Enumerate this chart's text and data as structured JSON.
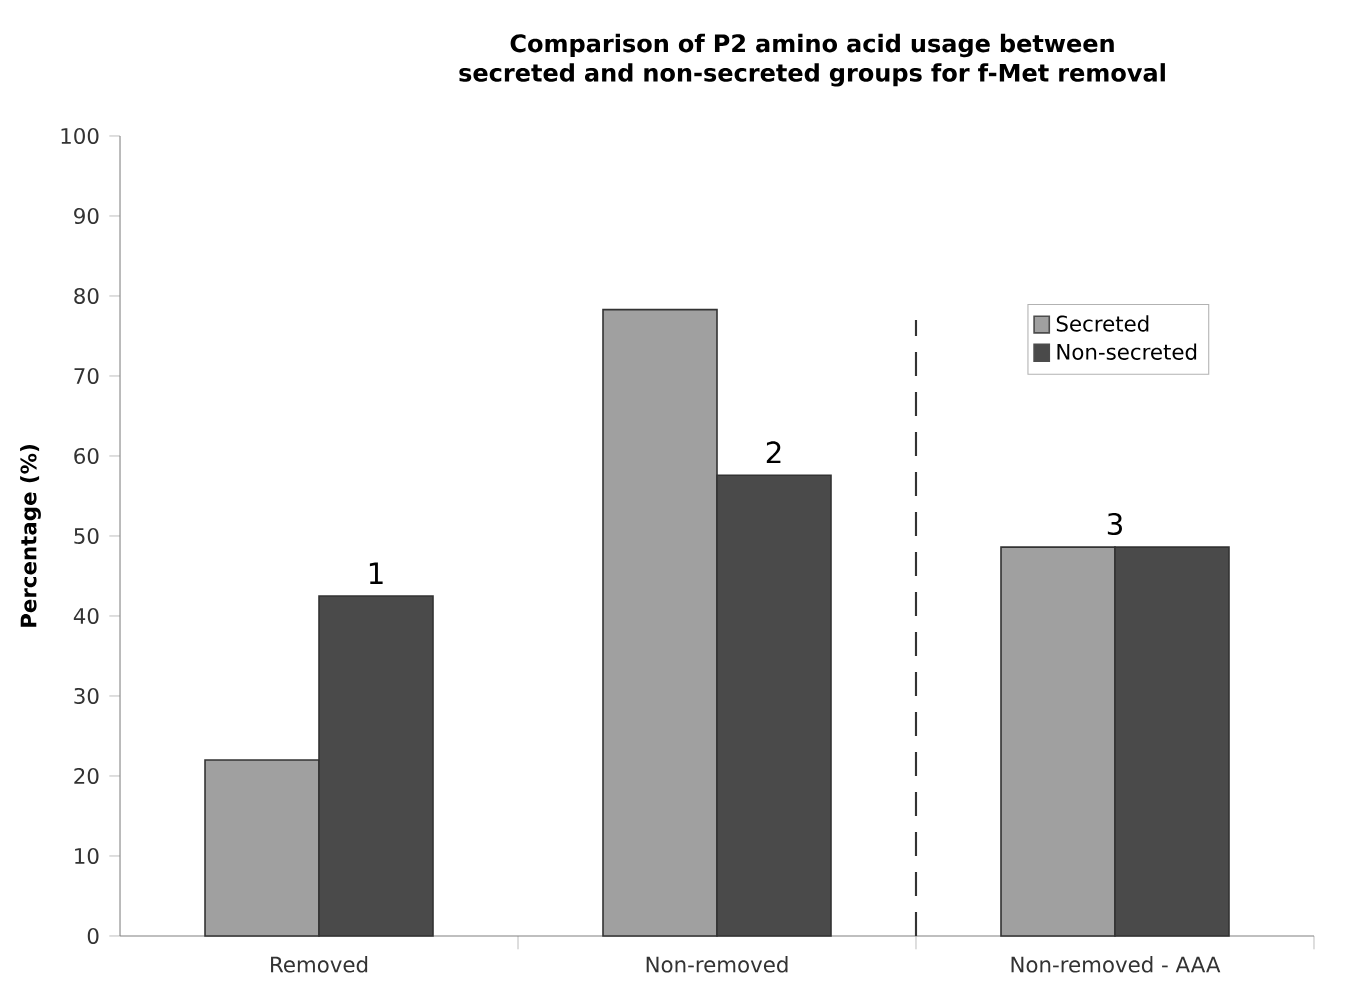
{
  "chart_data": {
    "type": "bar",
    "title": "Comparison of P2 amino acid usage between secreted and non-secreted groups for f-Met removal",
    "categories": [
      "Removed",
      "Non-removed",
      "Non-removed - AAA"
    ],
    "ylabel": "Percentage (%)",
    "series": [
      {
        "name": "Secreted",
        "color": "#a0a0a0",
        "values": [
          22,
          78.3,
          48.6
        ]
      },
      {
        "name": "Non-secreted",
        "color": "#4a4a4a",
        "values": [
          42.5,
          57.6,
          48.6
        ]
      }
    ],
    "ylim": [
      0,
      100
    ],
    "yticks": [
      0,
      10,
      20,
      30,
      40,
      50,
      60,
      70,
      80,
      90,
      100
    ],
    "grid": false,
    "legend": "top right",
    "annotations": [
      {
        "text": "1",
        "x": "Removed",
        "y": 42.5
      },
      {
        "text": "2",
        "x": "Non-removed",
        "y": 57.6
      },
      {
        "text": "3",
        "x": "Non-removed - AAA",
        "y": 48.6
      }
    ]
  }
}
